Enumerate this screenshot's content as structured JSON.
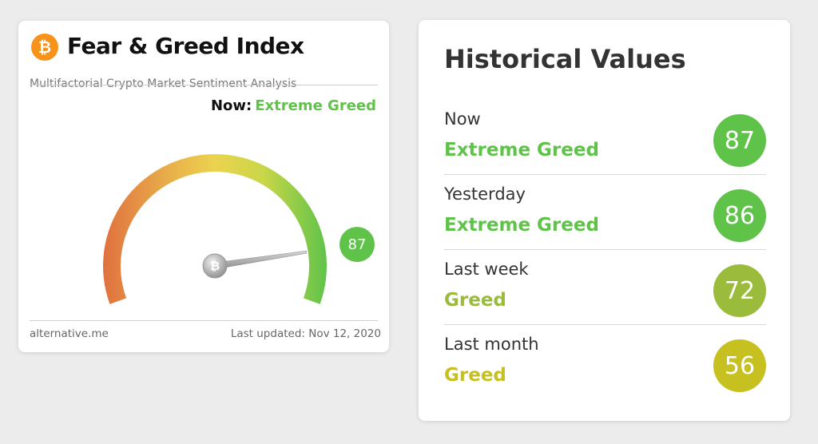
{
  "index_card": {
    "title": "Fear & Greed Index",
    "subtitle": "Multifactorial Crypto Market Sentiment Analysis",
    "logo_icon": "bitcoin-icon",
    "now_label": "Now:",
    "now_value": "Extreme Greed",
    "now_color": "#5fc34a",
    "gauge_value": 87,
    "gauge_min": 0,
    "gauge_max": 100,
    "gauge_badge_color": "#5fc34a",
    "footer_source": "alternative.me",
    "footer_updated": "Last updated: Nov 12, 2020"
  },
  "history": {
    "title": "Historical Values",
    "rows": [
      {
        "period": "Now",
        "classification": "Extreme Greed",
        "value": "87",
        "color": "#5fc34a"
      },
      {
        "period": "Yesterday",
        "classification": "Extreme Greed",
        "value": "86",
        "color": "#5fc34a"
      },
      {
        "period": "Last week",
        "classification": "Greed",
        "value": "72",
        "color": "#9abb3c"
      },
      {
        "period": "Last month",
        "classification": "Greed",
        "value": "56",
        "color": "#c6c020"
      }
    ]
  }
}
